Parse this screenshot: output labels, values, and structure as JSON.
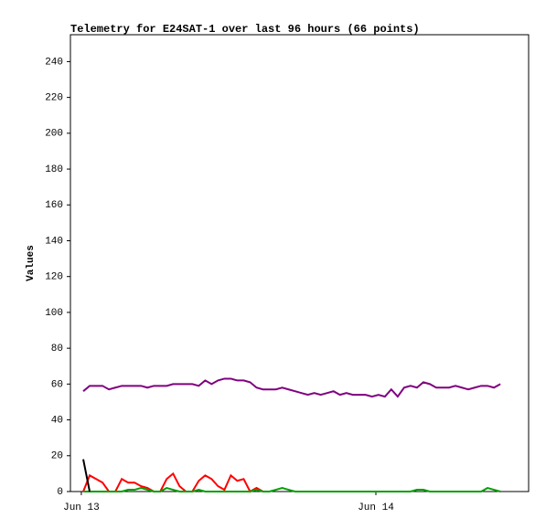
{
  "chart_data": {
    "type": "line",
    "title": "Telemetry for E24SAT-1 over last 96 hours (66 points)",
    "y_label": "Values",
    "x": [
      0,
      1,
      2,
      3,
      4,
      5,
      6,
      7,
      8,
      9,
      10,
      11,
      12,
      13,
      14,
      15,
      16,
      17,
      18,
      19,
      20,
      21,
      22,
      23,
      24,
      25,
      26,
      27,
      28,
      29,
      30,
      31,
      32,
      33,
      34,
      35,
      36,
      37,
      38,
      39,
      40,
      41,
      42,
      43,
      44,
      45,
      46,
      47,
      48,
      49,
      50,
      51,
      52,
      53,
      54,
      55,
      56,
      57,
      58,
      59,
      60,
      61,
      62,
      63,
      64,
      65
    ],
    "xlim": [
      -2,
      69.4
    ],
    "xticks": [
      {
        "value": -0.3,
        "label": "Jun 13"
      },
      {
        "value": 45.6,
        "label": "Jun 14"
      }
    ],
    "ylim": [
      0,
      255
    ],
    "yticks": [
      0,
      20,
      40,
      60,
      80,
      100,
      120,
      140,
      160,
      180,
      200,
      220,
      240
    ],
    "series": [
      {
        "name": "purple",
        "color": "#800080",
        "values": [
          56,
          59,
          59,
          59,
          57,
          58,
          59,
          59,
          59,
          59,
          58,
          59,
          59,
          59,
          60,
          60,
          60,
          60,
          59,
          62,
          60,
          62,
          63,
          63,
          62,
          62,
          61,
          58,
          57,
          57,
          57,
          58,
          57,
          56,
          55,
          54,
          55,
          54,
          55,
          56,
          54,
          55,
          54,
          54,
          54,
          53,
          54,
          53,
          57,
          53,
          58,
          59,
          58,
          61,
          60,
          58,
          58,
          58,
          59,
          58,
          57,
          58,
          59,
          59,
          58,
          60
        ]
      },
      {
        "name": "red",
        "color": "#ff0000",
        "values": [
          0,
          9,
          7,
          5,
          0,
          0,
          7,
          5,
          5,
          3,
          2,
          0,
          0,
          7,
          10,
          3,
          0,
          0,
          6,
          9,
          7,
          3,
          1,
          9,
          6,
          7,
          0,
          2,
          0,
          null,
          null,
          null,
          null,
          null,
          null,
          null,
          null,
          null,
          null,
          null,
          null,
          null,
          null,
          null,
          null,
          null,
          null,
          null,
          null,
          null,
          null,
          null,
          null,
          null,
          null,
          null,
          null,
          null,
          null,
          null,
          null,
          null,
          null,
          null,
          null,
          null
        ]
      },
      {
        "name": "green",
        "color": "#00a000",
        "values": [
          0,
          0,
          0,
          0,
          0,
          0,
          0,
          1,
          1,
          2,
          1,
          0,
          0,
          2,
          1,
          0,
          0,
          0,
          1,
          0,
          0,
          0,
          0,
          0,
          0,
          0,
          0,
          1,
          0,
          0,
          1,
          2,
          1,
          0,
          0,
          0,
          0,
          0,
          0,
          0,
          0,
          0,
          0,
          0,
          0,
          0,
          0,
          0,
          0,
          0,
          0,
          0,
          1,
          1,
          0,
          0,
          0,
          0,
          0,
          0,
          0,
          0,
          0,
          2,
          1,
          0
        ]
      },
      {
        "name": "black",
        "color": "#000000",
        "values": [
          18,
          0,
          null,
          null,
          null,
          null,
          null,
          null,
          null,
          null,
          null,
          null,
          null,
          null,
          null,
          null,
          null,
          null,
          null,
          null,
          null,
          null,
          null,
          null,
          null,
          null,
          null,
          null,
          null,
          null,
          null,
          null,
          null,
          null,
          null,
          null,
          null,
          null,
          null,
          null,
          null,
          null,
          null,
          null,
          null,
          null,
          null,
          null,
          null,
          null,
          null,
          null,
          null,
          null,
          null,
          null,
          null,
          null,
          null,
          null,
          null,
          null,
          null,
          null,
          null,
          null
        ]
      }
    ]
  }
}
